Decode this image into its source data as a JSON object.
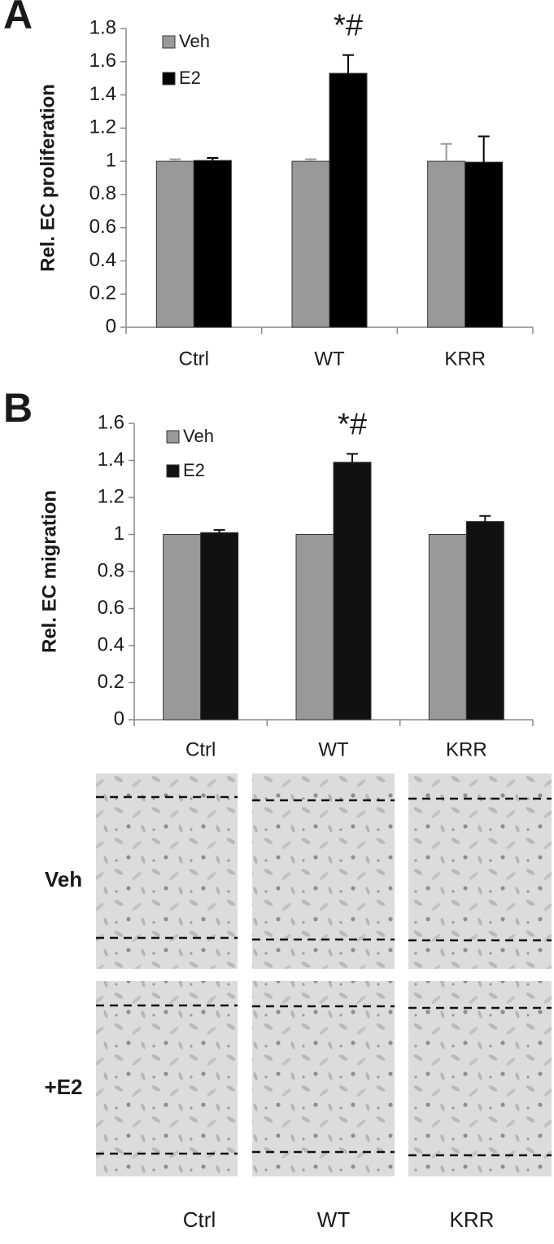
{
  "chart_data": [
    {
      "type": "bar",
      "panel_label": "A",
      "ylabel": "Rel. EC proliferation",
      "categories": [
        "Ctrl",
        "WT",
        "KRR"
      ],
      "series": [
        {
          "name": "Veh",
          "color": "#999999",
          "values": [
            1,
            1,
            1
          ],
          "errors": [
            0.012,
            0.012,
            0.105
          ]
        },
        {
          "name": "E2",
          "color": "#000000",
          "values": [
            1.005,
            1.53,
            0.995
          ],
          "errors": [
            0.015,
            0.11,
            0.155
          ]
        }
      ],
      "ylim": [
        0,
        1.8
      ],
      "yticks": [
        0,
        0.2,
        0.4,
        0.6,
        0.8,
        1,
        1.2,
        1.4,
        1.6,
        1.8
      ],
      "annotations": [
        {
          "text": "*#",
          "category": "WT",
          "series": "E2"
        }
      ]
    },
    {
      "type": "bar",
      "panel_label": "B",
      "ylabel": "Rel. EC migration",
      "categories": [
        "Ctrl",
        "WT",
        "KRR"
      ],
      "series": [
        {
          "name": "Veh",
          "color": "#999999",
          "values": [
            1,
            1,
            1
          ]
        },
        {
          "name": "E2",
          "color": "#111111",
          "values": [
            1.01,
            1.39,
            1.07
          ],
          "errors": [
            0.015,
            0.045,
            0.03
          ]
        }
      ],
      "ylim": [
        0,
        1.6
      ],
      "yticks": [
        0,
        0.2,
        0.4,
        0.6,
        0.8,
        1,
        1.2,
        1.4,
        1.6
      ],
      "annotations": [
        {
          "text": "*#",
          "category": "WT",
          "series": "E2"
        }
      ]
    }
  ],
  "micrograph_panel": {
    "rows": [
      "Veh",
      "+E2"
    ],
    "columns": [
      "Ctrl",
      "WT",
      "KRR"
    ]
  }
}
